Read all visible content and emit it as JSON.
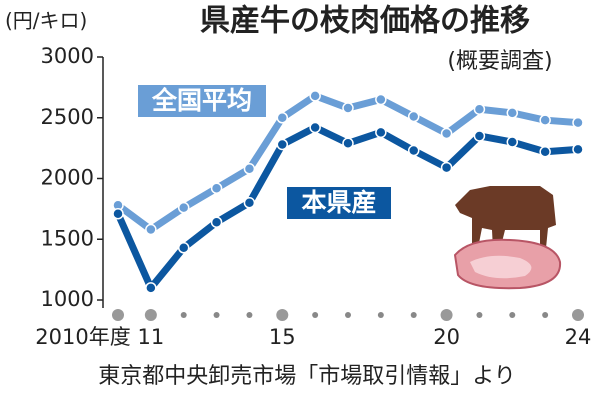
{
  "chart_data": {
    "type": "line",
    "title": "県産牛の枝肉価格の推移",
    "subtitle": "(概要調査)",
    "y_label": "(円/キロ)",
    "source": "東京都中央卸売市場「市場取引情報」より",
    "x": [
      2010,
      2011,
      2012,
      2013,
      2014,
      2015,
      2016,
      2017,
      2018,
      2019,
      2020,
      2021,
      2022,
      2023,
      2024
    ],
    "xlim": [
      2010,
      2024
    ],
    "xticks": [
      {
        "value": 2010,
        "label": "2010年度"
      },
      {
        "value": 2011,
        "label": "11"
      },
      {
        "value": 2015,
        "label": "15"
      },
      {
        "value": 2020,
        "label": "20"
      },
      {
        "value": 2024,
        "label": "24"
      }
    ],
    "ylim": [
      1000,
      3000
    ],
    "yticks": [
      1000,
      1500,
      2000,
      2500,
      3000
    ],
    "grid": false,
    "series": [
      {
        "name": "全国平均",
        "color": "#6a9ed6",
        "values": [
          1780,
          1580,
          1760,
          1920,
          2080,
          2500,
          2680,
          2580,
          2650,
          2510,
          2370,
          2570,
          2540,
          2480,
          2460
        ]
      },
      {
        "name": "本県産",
        "color": "#0c57a0",
        "values": [
          1710,
          1100,
          1430,
          1640,
          1800,
          2280,
          2420,
          2290,
          2380,
          2230,
          2090,
          2350,
          2300,
          2220,
          2240
        ]
      }
    ]
  }
}
